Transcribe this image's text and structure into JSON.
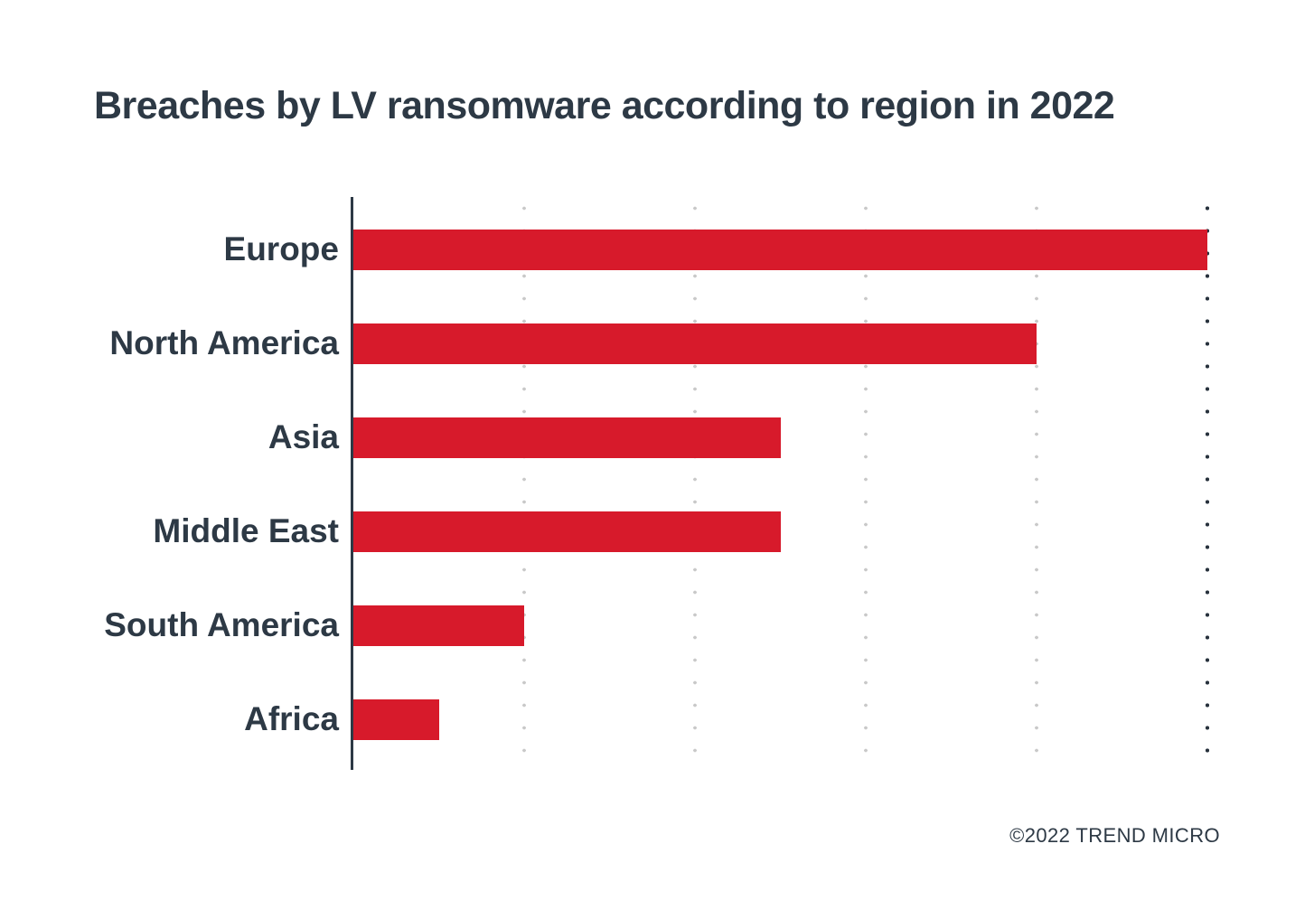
{
  "title": "Breaches by LV ransomware according to region in 2022",
  "footer": {
    "copyright": "©2022 TREND MICRO"
  },
  "colors": {
    "bar": "#d71a2b",
    "text": "#2d3945",
    "axis": "#2d3945",
    "gridline": "#c9c9c9",
    "gridline_emphasized": "#27313c",
    "background": "#ffffff"
  },
  "chart_data": {
    "type": "bar",
    "orientation": "horizontal",
    "title": "Breaches by LV ransomware according to region in 2022",
    "categories": [
      "Europe",
      "North America",
      "Asia",
      "Middle East",
      "South America",
      "Africa"
    ],
    "values": [
      10,
      8,
      5,
      5,
      2,
      1
    ],
    "xlabel": "",
    "ylabel": "",
    "xlim": [
      0,
      10
    ],
    "x_tick_labels": [],
    "value_estimation": "no numeric axis labels shown; values estimated from the 5 evenly spaced dotted gridlines (bars span ~100%, 80%, 50%, 50%, 20%, 10% of the max gridline)",
    "gridlines": {
      "count": 5,
      "style": "dotted",
      "vertical": true,
      "last_emphasized": true
    },
    "legend": "none"
  }
}
